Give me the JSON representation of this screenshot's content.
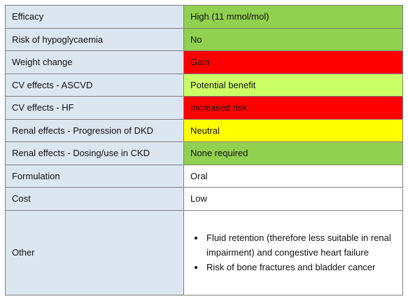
{
  "table": {
    "rows": [
      [
        "Efficacy",
        "High (11 mmol/mol)"
      ],
      [
        "Risk of hypoglycaemia",
        "No"
      ],
      [
        "Weight change",
        "Gain"
      ],
      [
        "CV effects - ASCVD",
        "Potential benefit"
      ],
      [
        "CV effects - HF",
        "Increased risk"
      ],
      [
        "Renal effects - Progression of DKD",
        "Neutral"
      ],
      [
        "Renal effects - Dosing/use in CKD",
        "None required"
      ],
      [
        "Formulation",
        "Oral"
      ],
      [
        "Cost",
        "Low"
      ],
      [
        "Other",
        [
          "Fluid retention (therefore less suitable in renal impairment) and congestive heart failure",
          "Risk of bone fractures and bladder cancer"
        ]
      ]
    ]
  }
}
